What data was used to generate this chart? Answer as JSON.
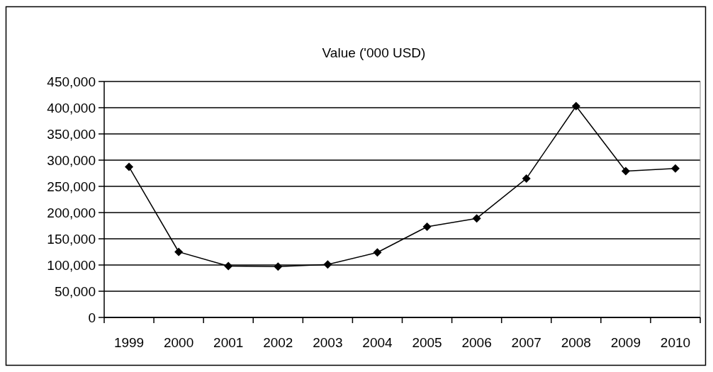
{
  "chart_data": {
    "type": "line",
    "title": "Value ('000 USD)",
    "categories": [
      "1999",
      "2000",
      "2001",
      "2002",
      "2003",
      "2004",
      "2005",
      "2006",
      "2007",
      "2008",
      "2009",
      "2010"
    ],
    "series": [
      {
        "color": "#000000",
        "values": [
          287000,
          125000,
          98000,
          97000,
          101000,
          124000,
          173000,
          189000,
          265000,
          403000,
          279000,
          284000
        ]
      }
    ],
    "ylim": [
      0,
      450000
    ],
    "yticks": [
      {
        "value": 0,
        "label": "0"
      },
      {
        "value": 50000,
        "label": "50,000"
      },
      {
        "value": 100000,
        "label": "100,000"
      },
      {
        "value": 150000,
        "label": "150,000"
      },
      {
        "value": 200000,
        "label": "200,000"
      },
      {
        "value": 250000,
        "label": "250,000"
      },
      {
        "value": 300000,
        "label": "300,000"
      },
      {
        "value": 350000,
        "label": "350,000"
      },
      {
        "value": 400000,
        "label": "400,000"
      },
      {
        "value": 450000,
        "label": "450,000"
      }
    ],
    "grid": "y",
    "marker": "diamond",
    "line_style": "solid"
  }
}
